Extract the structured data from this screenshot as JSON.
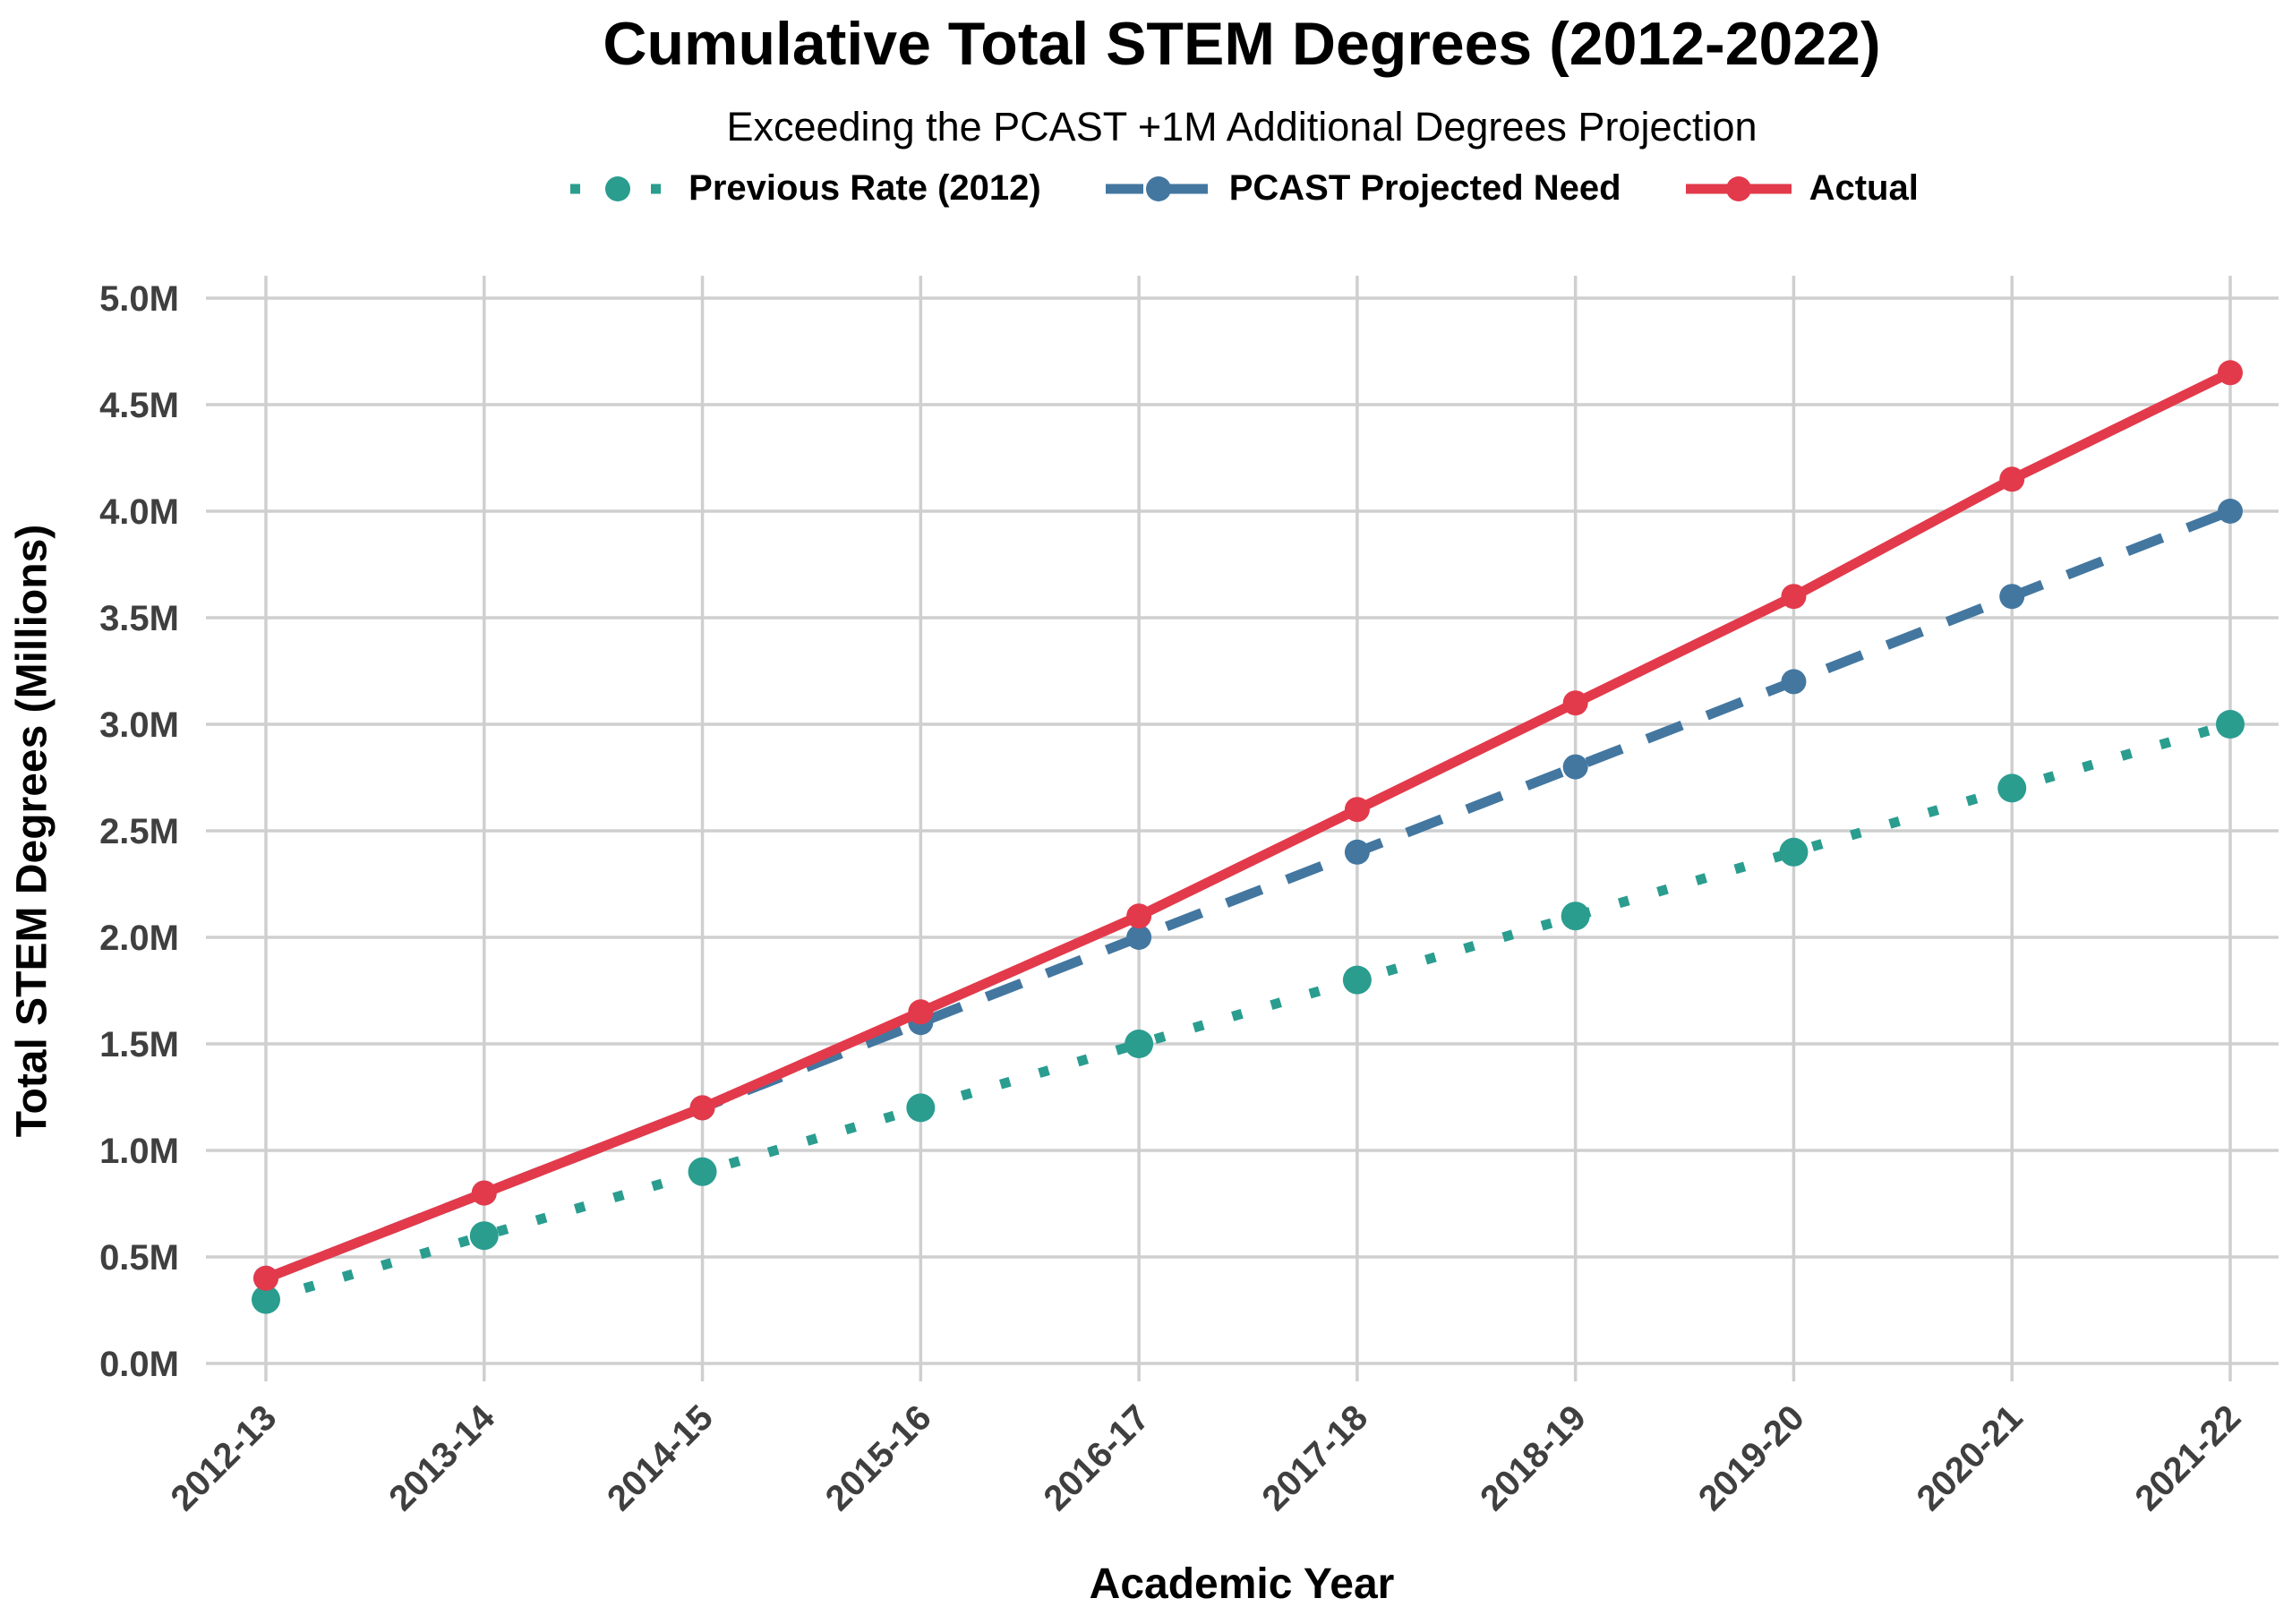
{
  "title": "Cumulative Total STEM Degrees (2012-2022)",
  "subtitle": "Exceeding the PCAST +1M Additional Degrees Projection",
  "chart_data": {
    "type": "line",
    "categories": [
      "2012-13",
      "2013-14",
      "2014-15",
      "2015-16",
      "2016-17",
      "2017-18",
      "2018-19",
      "2019-20",
      "2020-21",
      "2021-22"
    ],
    "series": [
      {
        "name": "Previous Rate (2012)",
        "style": "dotted",
        "color": "#2a9d8f",
        "values": [
          0.3,
          0.6,
          0.9,
          1.2,
          1.5,
          1.8,
          2.1,
          2.4,
          2.7,
          3.0
        ]
      },
      {
        "name": "PCAST Projected Need",
        "style": "dashed",
        "color": "#4377a0",
        "values": [
          0.4,
          0.8,
          1.2,
          1.6,
          2.0,
          2.4,
          2.8,
          3.2,
          3.6,
          4.0
        ]
      },
      {
        "name": "Actual",
        "style": "solid",
        "color": "#e23a4b",
        "values": [
          0.4,
          0.8,
          1.2,
          1.65,
          2.1,
          2.6,
          3.1,
          3.6,
          4.15,
          4.65
        ]
      }
    ],
    "xlabel": "Academic Year",
    "ylabel": "Total STEM Degrees (Millions)",
    "ylim": [
      0,
      5
    ],
    "y_tick_labels": [
      "0.0M",
      "0.5M",
      "1.0M",
      "1.5M",
      "2.0M",
      "2.5M",
      "3.0M",
      "3.5M",
      "4.0M",
      "4.5M",
      "5.0M"
    ],
    "grid": true,
    "legend_position": "top-center",
    "background_color": "#ffffff",
    "grid_color": "#cfcfcf",
    "tick_label_color": "#3f3f3f"
  }
}
